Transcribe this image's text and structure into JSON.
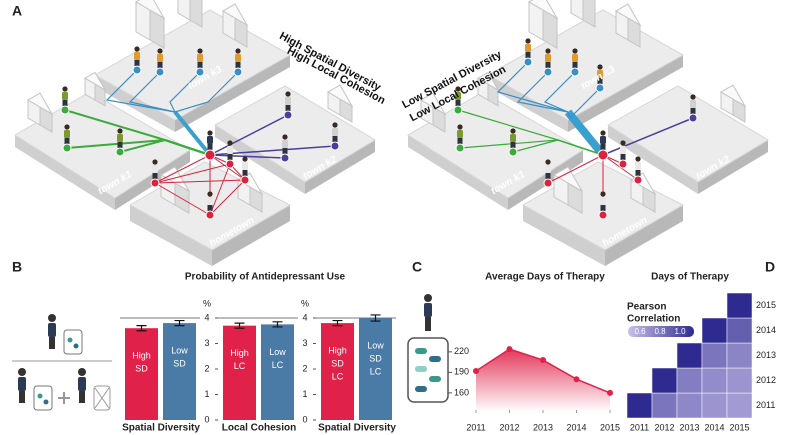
{
  "panel_labels": {
    "a": "A",
    "b": "B",
    "c": "C",
    "d": "D"
  },
  "networks": [
    {
      "title_lines": [
        "High Spatial Diversity",
        "High Local Cohesion"
      ],
      "towns": [
        "town k3",
        "town k1",
        "town k2",
        "hometown"
      ]
    },
    {
      "title_lines": [
        "Low Spatial Diversity",
        "Low Local Cohesion"
      ],
      "towns": [
        "town k3",
        "town k1",
        "town k2",
        "hometown"
      ]
    }
  ],
  "chart_data": [
    {
      "type": "bar",
      "xlabel": "Spatial Diversity",
      "categories": [
        [
          "High",
          "SD"
        ],
        [
          "Low",
          "SD"
        ]
      ],
      "values": [
        3.6,
        3.8
      ],
      "errors": [
        0.1,
        0.1
      ],
      "colors": [
        "#e0224a",
        "#4a7aa6"
      ],
      "ylim": [
        0,
        4
      ]
    },
    {
      "type": "bar",
      "title": "Probability of Antidepressant Use",
      "xlabel": "Local Cohesion",
      "ylabel": "%",
      "categories": [
        [
          "High",
          "LC"
        ],
        [
          "Low",
          "LC"
        ]
      ],
      "values": [
        3.7,
        3.75
      ],
      "errors": [
        0.1,
        0.1
      ],
      "colors": [
        "#e0224a",
        "#4a7aa6"
      ],
      "ylim": [
        0,
        4
      ],
      "yticks": [
        0,
        1,
        2,
        3,
        4
      ]
    },
    {
      "type": "bar",
      "xlabel": "Spatial Diversity",
      "ylabel": "%",
      "categories": [
        [
          "High",
          "SD",
          "LC"
        ],
        [
          "Low",
          "SD",
          "LC"
        ]
      ],
      "values": [
        3.8,
        4.0
      ],
      "errors": [
        0.1,
        0.12
      ],
      "colors": [
        "#e0224a",
        "#4a7aa6"
      ],
      "ylim": [
        0,
        4
      ],
      "yticks": [
        0,
        1,
        2,
        3,
        4
      ]
    },
    {
      "type": "area",
      "title": "Average Days of Therapy",
      "x": [
        2011,
        2012,
        2013,
        2014,
        2015
      ],
      "values": [
        192,
        224,
        208,
        180,
        160
      ],
      "color": "#e0224a",
      "xlim": [
        2011,
        2015
      ],
      "xticks": [
        2011,
        2012,
        2013,
        2014,
        2015
      ],
      "ylim": [
        135,
        230
      ],
      "yticks": [
        160,
        190,
        220
      ]
    },
    {
      "type": "heatmap",
      "title": "Days of Therapy",
      "x": [
        2011,
        2012,
        2013,
        2014,
        2015
      ],
      "y": [
        2011,
        2012,
        2013,
        2014,
        2015
      ],
      "values": [
        [
          1.0,
          0.8,
          0.75,
          0.72,
          0.7
        ],
        [
          null,
          1.0,
          0.78,
          0.74,
          0.72
        ],
        [
          null,
          null,
          1.0,
          0.8,
          0.76
        ],
        [
          null,
          null,
          null,
          1.0,
          0.86
        ],
        [
          null,
          null,
          null,
          null,
          1.0
        ]
      ],
      "colorbar_title": [
        "Pearson",
        "Correlation"
      ],
      "clim": [
        0.6,
        1.0
      ],
      "colormap": [
        "#c9c1ea",
        "#2e2a8f"
      ],
      "colorbar_ticks": [
        0.6,
        0.8,
        {
          "value": 1,
          "label": "1.0"
        }
      ]
    }
  ]
}
